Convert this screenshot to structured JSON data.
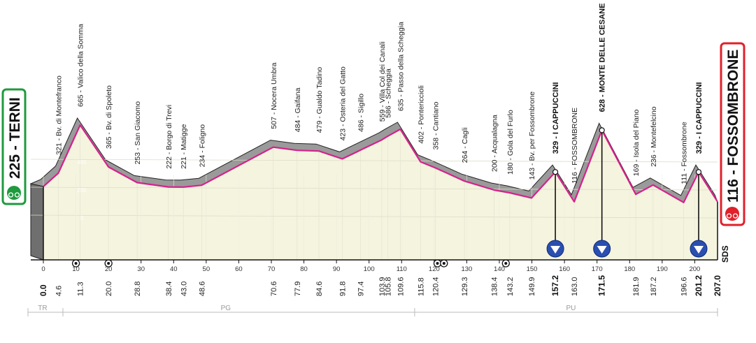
{
  "chart_data": {
    "type": "area",
    "xlim": [
      0,
      207
    ],
    "x_ticks": [
      0,
      10,
      20,
      30,
      40,
      50,
      60,
      70,
      80,
      90,
      100,
      110,
      120,
      130,
      140,
      150,
      160,
      170,
      180,
      190,
      200
    ],
    "y_ticks": [
      0,
      200,
      400
    ],
    "start": {
      "label": "225 - TERNI",
      "color": "#1f9a3e"
    },
    "finish": {
      "label": "116 - FOSSOMBRONE",
      "color": "#e0202a"
    },
    "km_markers": [
      "0.0",
      "4.6",
      "11.3",
      "20.0",
      "28.8",
      "38.4",
      "43.0",
      "48.6",
      "70.6",
      "77.9",
      "84.6",
      "91.8",
      "97.4",
      "103.9",
      "105.8",
      "109.6",
      "115.8",
      "120.4",
      "129.3",
      "138.4",
      "143.2",
      "149.9",
      "157.2",
      "163.0",
      "171.5",
      "181.9",
      "187.2",
      "196.6",
      "201.2",
      "207.0"
    ],
    "km_bold": [
      "157.2",
      "171.5",
      "201.2",
      "207.0"
    ],
    "points": [
      {
        "km": 0,
        "alt": 225
      },
      {
        "km": 4.6,
        "alt": 321,
        "label": "321 - Bv. di Montefranco"
      },
      {
        "km": 11.3,
        "alt": 665,
        "label": "665 - Valico della Somma"
      },
      {
        "km": 20.0,
        "alt": 365,
        "label": "365 - Bv. di Spoleto"
      },
      {
        "km": 28.8,
        "alt": 253,
        "label": "253 - San Giacomo"
      },
      {
        "km": 38.4,
        "alt": 222,
        "label": "222 - Borgo di Trevi"
      },
      {
        "km": 43.0,
        "alt": 221,
        "label": "221 - Matigge"
      },
      {
        "km": 48.6,
        "alt": 234,
        "label": "234 - Foligno"
      },
      {
        "km": 70.6,
        "alt": 507,
        "label": "507 - Nocera Umbra"
      },
      {
        "km": 77.9,
        "alt": 484,
        "label": "484 - Gaifana"
      },
      {
        "km": 84.6,
        "alt": 479,
        "label": "479 - Gualdo Tadino"
      },
      {
        "km": 91.8,
        "alt": 423,
        "label": "423 - Osteria del Gatto"
      },
      {
        "km": 97.4,
        "alt": 486,
        "label": "486 - Sigillo"
      },
      {
        "km": 103.9,
        "alt": 559,
        "label": "559 - Villa Col dei Canali"
      },
      {
        "km": 105.8,
        "alt": 586,
        "label": "586 - Scheggia"
      },
      {
        "km": 109.6,
        "alt": 635,
        "label": "635 - Passo della Scheggia"
      },
      {
        "km": 115.8,
        "alt": 402,
        "label": "402 - Pontericcioli"
      },
      {
        "km": 120.4,
        "alt": 358,
        "label": "358 - Cantiano"
      },
      {
        "km": 129.3,
        "alt": 264,
        "label": "264 - Cagli"
      },
      {
        "km": 138.4,
        "alt": 200,
        "label": "200 - Acqualagna"
      },
      {
        "km": 143.2,
        "alt": 180,
        "label": "180 - Gola del Furlo"
      },
      {
        "km": 149.9,
        "alt": 143,
        "label": "143 - Bv. per Fossombrone"
      },
      {
        "km": 157.2,
        "alt": 329,
        "label": "329 - I CAPPUCCINI",
        "bold": true
      },
      {
        "km": 163.0,
        "alt": 116,
        "label": "116 - FOSSOMBRONE"
      },
      {
        "km": 171.5,
        "alt": 628,
        "label": "628 - MONTE DELLE CESANE",
        "bold": true
      },
      {
        "km": 181.9,
        "alt": 169,
        "label": "169 - Isola del Piano"
      },
      {
        "km": 187.2,
        "alt": 236,
        "label": "236 - Montefelcino"
      },
      {
        "km": 196.6,
        "alt": 111,
        "label": "111 - Fossombrone"
      },
      {
        "km": 201.2,
        "alt": 329,
        "label": "329 - I CAPPUCCINI",
        "bold": true
      },
      {
        "km": 207.0,
        "alt": 116
      }
    ],
    "gpm_km": [
      157.2,
      171.5,
      201.2
    ],
    "sprint_km": [
      10,
      20,
      121,
      123,
      142
    ],
    "regions": [
      "TR",
      "PG",
      "PU"
    ],
    "logo_text": "SDS",
    "colors": {
      "ridge": "#9a9a9a",
      "line": "#d6218c",
      "fill": "#f4f4df",
      "gpm": "#2a4fb0"
    }
  }
}
